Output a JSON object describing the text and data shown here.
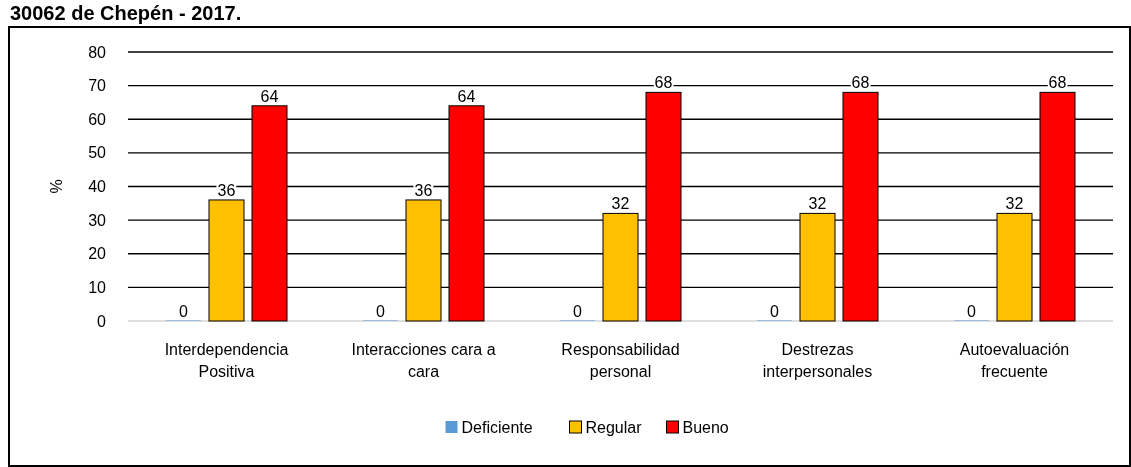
{
  "chart_data": {
    "type": "bar",
    "title": "30062 de Chepén - 2017.",
    "ylabel": "%",
    "categories": [
      "Interdependencia Positiva",
      "Interacciones cara a cara",
      "Responsabilidad personal",
      "Destrezas interpersonales",
      "Autoevaluación frecuente"
    ],
    "series": [
      {
        "name": "Deficiente",
        "color": "#5b9bd5",
        "values": [
          0,
          0,
          0,
          0,
          0
        ]
      },
      {
        "name": "Regular",
        "color": "#ffc000",
        "values": [
          36,
          36,
          32,
          32,
          32
        ]
      },
      {
        "name": "Bueno",
        "color": "#ff0000",
        "values": [
          64,
          64,
          68,
          68,
          68
        ]
      }
    ],
    "ylim": [
      0,
      80
    ],
    "yticks": [
      0,
      10,
      20,
      30,
      40,
      50,
      60,
      70,
      80
    ],
    "grid": "y",
    "data_labels": true,
    "legend": "bottom"
  }
}
